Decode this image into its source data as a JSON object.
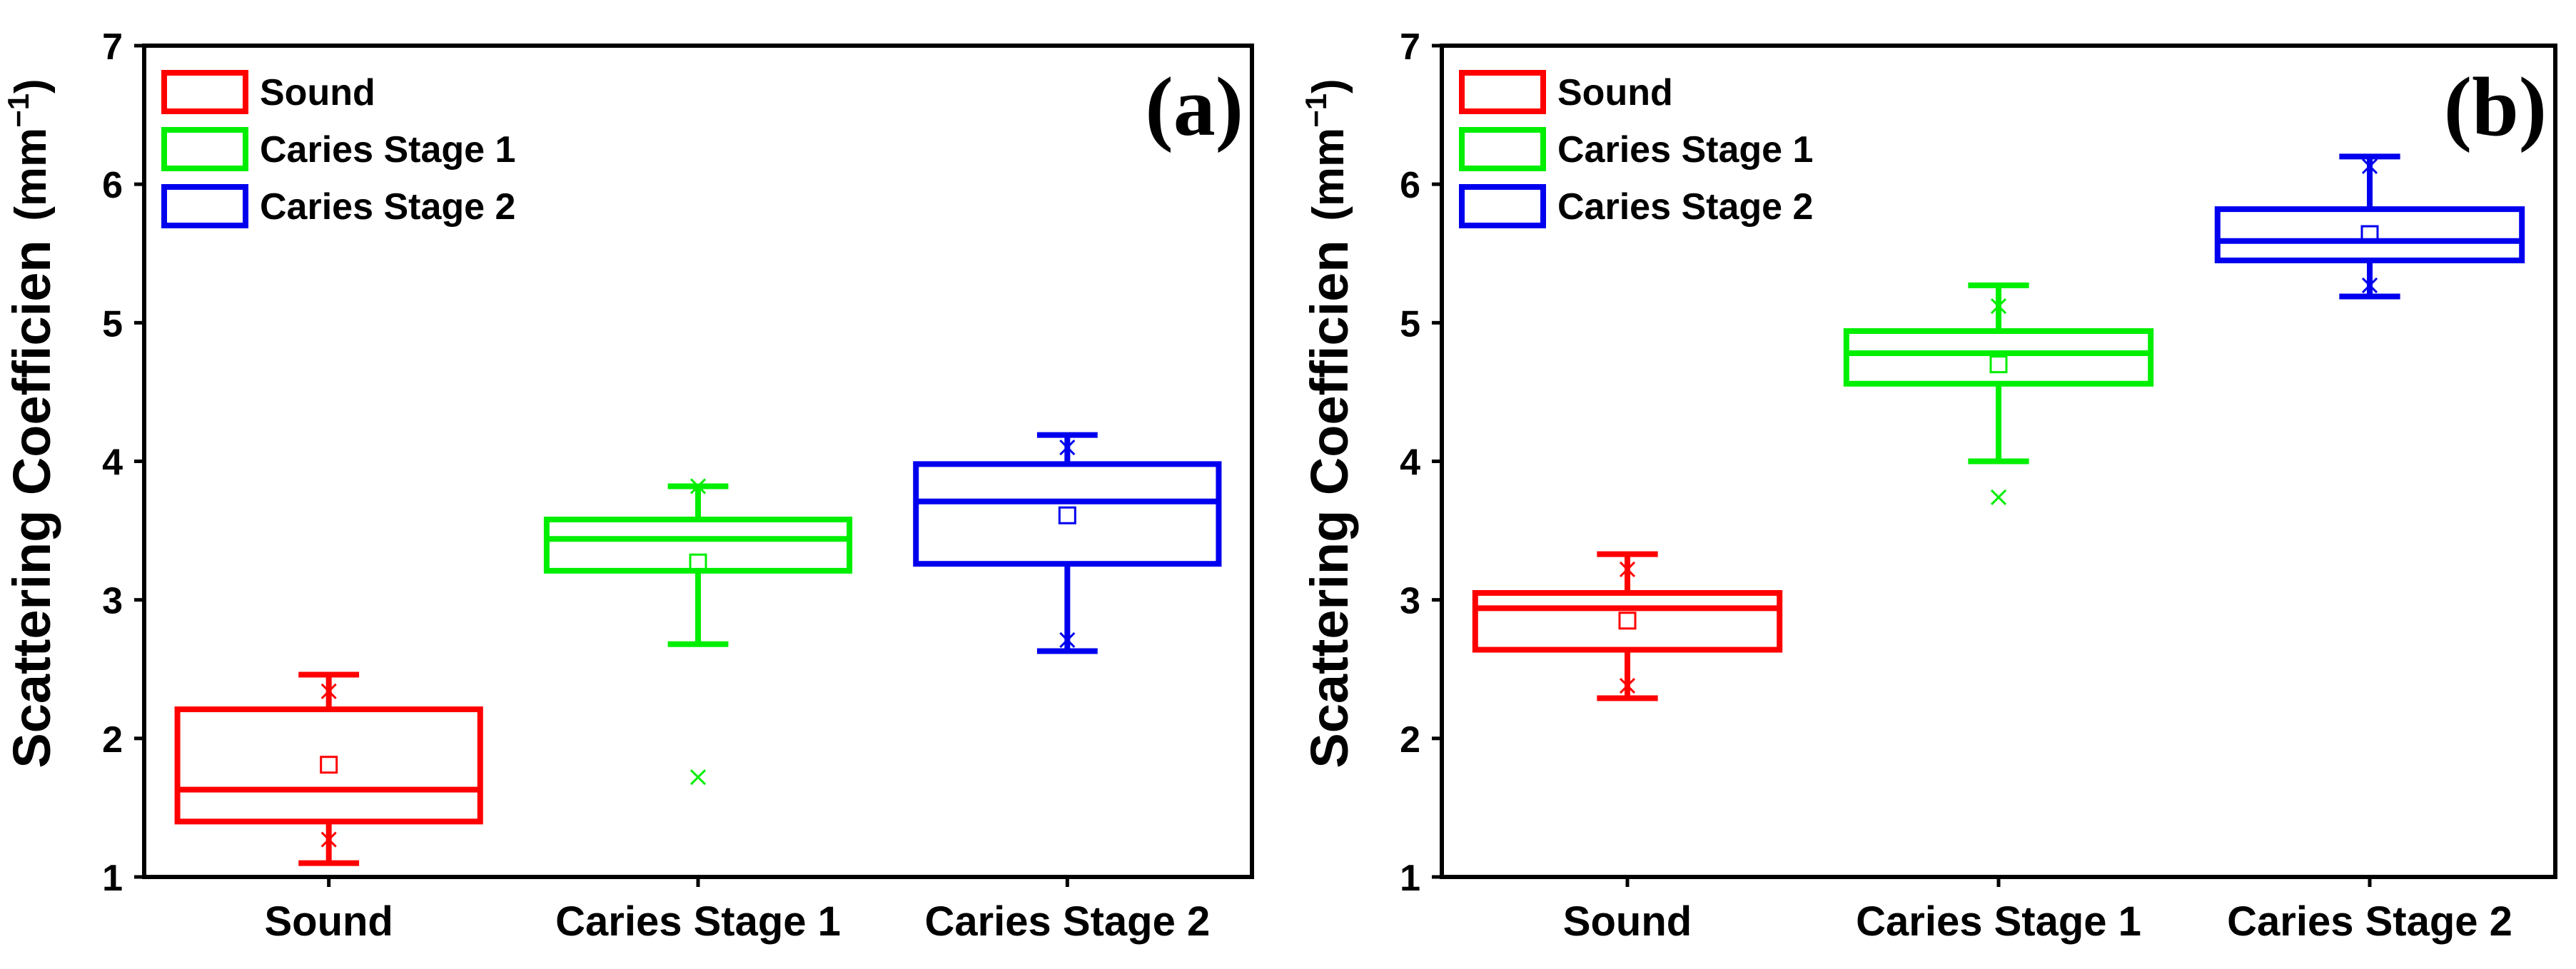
{
  "figure": {
    "unit_prefix": "(mm",
    "unit_exp": "−1",
    "unit_suffix": ")"
  },
  "chart_data": [
    {
      "type": "box",
      "panel": "(a)",
      "title": "",
      "xlabel": "",
      "ylabel": "Scattering Coefficien",
      "ylim": [
        1,
        7
      ],
      "yticks": [
        1,
        2,
        3,
        4,
        5,
        6,
        7
      ],
      "legend": {
        "position": "top-left",
        "entries": [
          "Sound",
          "Caries Stage 1",
          "Caries Stage 2"
        ]
      },
      "categories": [
        "Sound",
        "Caries Stage 1",
        "Caries Stage 2"
      ],
      "series": [
        {
          "name": "Sound",
          "color": "#ff0000",
          "whisker_low": 1.1,
          "q1": 1.4,
          "median": 1.63,
          "q3": 2.21,
          "whisker_high": 2.46,
          "mean": 1.81,
          "min_marker": 1.27,
          "max_marker": 2.34,
          "outliers": []
        },
        {
          "name": "Caries Stage 1",
          "color": "#00ee00",
          "whisker_low": 2.68,
          "q1": 3.21,
          "median": 3.44,
          "q3": 3.58,
          "whisker_high": 3.82,
          "mean": 3.27,
          "min_marker": 1.72,
          "max_marker": 3.82,
          "outliers": [
            1.72
          ]
        },
        {
          "name": "Caries Stage 2",
          "color": "#0000ee",
          "whisker_low": 2.63,
          "q1": 3.26,
          "median": 3.71,
          "q3": 3.98,
          "whisker_high": 4.19,
          "mean": 3.61,
          "min_marker": 2.71,
          "max_marker": 4.1,
          "outliers": []
        }
      ]
    },
    {
      "type": "box",
      "panel": "(b)",
      "title": "",
      "xlabel": "",
      "ylabel": "Scattering Coefficien",
      "ylim": [
        1,
        7
      ],
      "yticks": [
        1,
        2,
        3,
        4,
        5,
        6,
        7
      ],
      "legend": {
        "position": "top-left",
        "entries": [
          "Sound",
          "Caries Stage 1",
          "Caries Stage 2"
        ]
      },
      "categories": [
        "Sound",
        "Caries Stage 1",
        "Caries Stage 2"
      ],
      "series": [
        {
          "name": "Sound",
          "color": "#ff0000",
          "whisker_low": 2.29,
          "q1": 2.64,
          "median": 2.94,
          "q3": 3.05,
          "whisker_high": 3.33,
          "mean": 2.85,
          "min_marker": 2.38,
          "max_marker": 3.22,
          "outliers": []
        },
        {
          "name": "Caries Stage 1",
          "color": "#00ee00",
          "whisker_low": 4.0,
          "q1": 4.56,
          "median": 4.78,
          "q3": 4.94,
          "whisker_high": 5.27,
          "mean": 4.7,
          "min_marker": 3.74,
          "max_marker": 5.12,
          "outliers": [
            3.74
          ]
        },
        {
          "name": "Caries Stage 2",
          "color": "#0000ee",
          "whisker_low": 5.19,
          "q1": 5.45,
          "median": 5.59,
          "q3": 5.82,
          "whisker_high": 6.2,
          "mean": 5.64,
          "min_marker": 5.27,
          "max_marker": 6.13,
          "outliers": []
        }
      ]
    }
  ]
}
